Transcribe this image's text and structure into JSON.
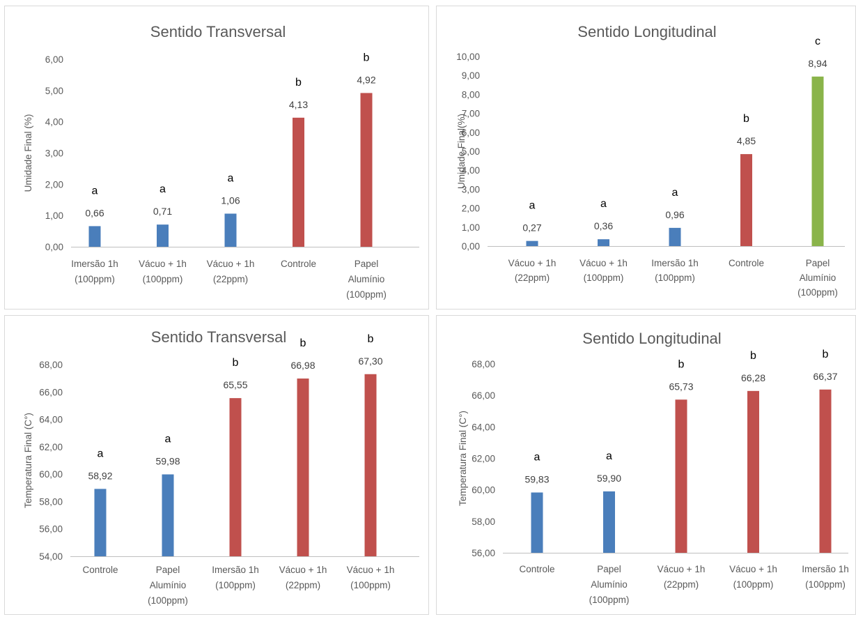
{
  "colors": {
    "blue": "#4a7ebb",
    "red": "#c0504d",
    "green": "#8ab44a",
    "axis": "#bfbfbf",
    "text": "#595959"
  },
  "chart_data": [
    {
      "type": "bar",
      "title": "Sentido Transversal",
      "ylabel": "Umidade Final (%)",
      "xlabel": "",
      "ylim": [
        0,
        6
      ],
      "ytick_step": 1,
      "categories": [
        [
          "Imersão 1h",
          "(100ppm)"
        ],
        [
          "Vácuo + 1h",
          "(100ppm)"
        ],
        [
          "Vácuo + 1h",
          "(22ppm)"
        ],
        [
          "Controle"
        ],
        [
          "Papel",
          "Alumínio",
          "(100ppm)"
        ]
      ],
      "values": [
        0.66,
        0.71,
        1.06,
        4.13,
        4.92
      ],
      "value_labels": [
        "0,66",
        "0,71",
        "1,06",
        "4,13",
        "4,92"
      ],
      "letters": [
        "a",
        "a",
        "a",
        "b",
        "b"
      ],
      "bar_colors": [
        "blue",
        "blue",
        "blue",
        "red",
        "red"
      ],
      "grid": false
    },
    {
      "type": "bar",
      "title": "Sentido Longitudinal",
      "ylabel": "Umidade Final(%)",
      "xlabel": "",
      "ylim": [
        0,
        10
      ],
      "ytick_step": 1,
      "categories": [
        [
          "Vácuo + 1h",
          "(22ppm)"
        ],
        [
          "Vácuo + 1h",
          "(100ppm)"
        ],
        [
          "Imersão 1h",
          "(100ppm)"
        ],
        [
          "Controle"
        ],
        [
          "Papel",
          "Alumínio",
          "(100ppm)"
        ]
      ],
      "values": [
        0.27,
        0.36,
        0.96,
        4.85,
        8.94
      ],
      "value_labels": [
        "0,27",
        "0,36",
        "0,96",
        "4,85",
        "8,94"
      ],
      "letters": [
        "a",
        "a",
        "a",
        "b",
        "c"
      ],
      "bar_colors": [
        "blue",
        "blue",
        "blue",
        "red",
        "green"
      ],
      "grid": false
    },
    {
      "type": "bar",
      "title": "Sentido Transversal",
      "ylabel": "Temperatura Final  (C°)",
      "xlabel": "",
      "ylim": [
        54,
        68
      ],
      "ytick_step": 2,
      "categories": [
        [
          "Controle"
        ],
        [
          "Papel",
          "Alumínio",
          "(100ppm)"
        ],
        [
          "Imersão 1h",
          "(100ppm)"
        ],
        [
          "Vácuo + 1h",
          "(22ppm)"
        ],
        [
          "Vácuo + 1h",
          "(100ppm)"
        ]
      ],
      "values": [
        58.92,
        59.98,
        65.55,
        66.98,
        67.3
      ],
      "value_labels": [
        "58,92",
        "59,98",
        "65,55",
        "66,98",
        "67,30"
      ],
      "letters": [
        "a",
        "a",
        "b",
        "b",
        "b"
      ],
      "bar_colors": [
        "blue",
        "blue",
        "red",
        "red",
        "red"
      ],
      "grid": false
    },
    {
      "type": "bar",
      "title": "Sentido Longitudinal",
      "ylabel": "Temperatura Final (C°)",
      "xlabel": "",
      "ylim": [
        56,
        68
      ],
      "ytick_step": 2,
      "categories": [
        [
          "Controle"
        ],
        [
          "Papel",
          "Alumínio",
          "(100ppm)"
        ],
        [
          "Vácuo + 1h",
          "(22ppm)"
        ],
        [
          "Vácuo + 1h",
          "(100ppm)"
        ],
        [
          "Imersão 1h",
          "(100ppm)"
        ]
      ],
      "values": [
        59.83,
        59.9,
        65.73,
        66.28,
        66.37
      ],
      "value_labels": [
        "59,83",
        "59,90",
        "65,73",
        "66,28",
        "66,37"
      ],
      "letters": [
        "a",
        "a",
        "b",
        "b",
        "b"
      ],
      "bar_colors": [
        "blue",
        "blue",
        "red",
        "red",
        "red"
      ],
      "grid": false
    }
  ]
}
